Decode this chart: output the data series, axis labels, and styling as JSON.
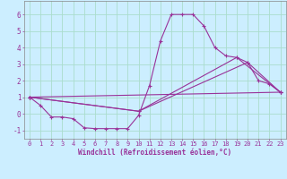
{
  "background_color": "#cceeff",
  "grid_color": "#aaddcc",
  "line_color": "#993399",
  "marker": "+",
  "marker_size": 3,
  "marker_linewidth": 0.8,
  "line_width": 0.8,
  "xlabel": "Windchill (Refroidissement éolien,°C)",
  "xlabel_fontsize": 5.5,
  "tick_fontsize": 5,
  "xlim": [
    -0.5,
    23.5
  ],
  "ylim": [
    -1.5,
    6.8
  ],
  "yticks": [
    -1,
    0,
    1,
    2,
    3,
    4,
    5,
    6
  ],
  "xticks": [
    0,
    1,
    2,
    3,
    4,
    5,
    6,
    7,
    8,
    9,
    10,
    11,
    12,
    13,
    14,
    15,
    16,
    17,
    18,
    19,
    20,
    21,
    22,
    23
  ],
  "line1_x": [
    0,
    1,
    2,
    3,
    4,
    5,
    6,
    7,
    8,
    9,
    10,
    11,
    12,
    13,
    14,
    15,
    16,
    17,
    18,
    19,
    20,
    21,
    22,
    23
  ],
  "line1_y": [
    1.0,
    0.5,
    -0.2,
    -0.2,
    -0.3,
    -0.85,
    -0.9,
    -0.9,
    -0.9,
    -0.9,
    -0.1,
    1.7,
    4.4,
    6.0,
    6.0,
    6.0,
    5.3,
    4.0,
    3.5,
    3.4,
    3.1,
    2.0,
    1.8,
    1.3
  ],
  "line2_x": [
    0,
    23
  ],
  "line2_y": [
    1.0,
    1.3
  ],
  "line3_x": [
    0,
    10,
    20,
    23
  ],
  "line3_y": [
    1.0,
    0.15,
    3.1,
    1.3
  ],
  "line4_x": [
    0,
    10,
    19,
    23
  ],
  "line4_y": [
    1.0,
    0.15,
    3.4,
    1.3
  ]
}
